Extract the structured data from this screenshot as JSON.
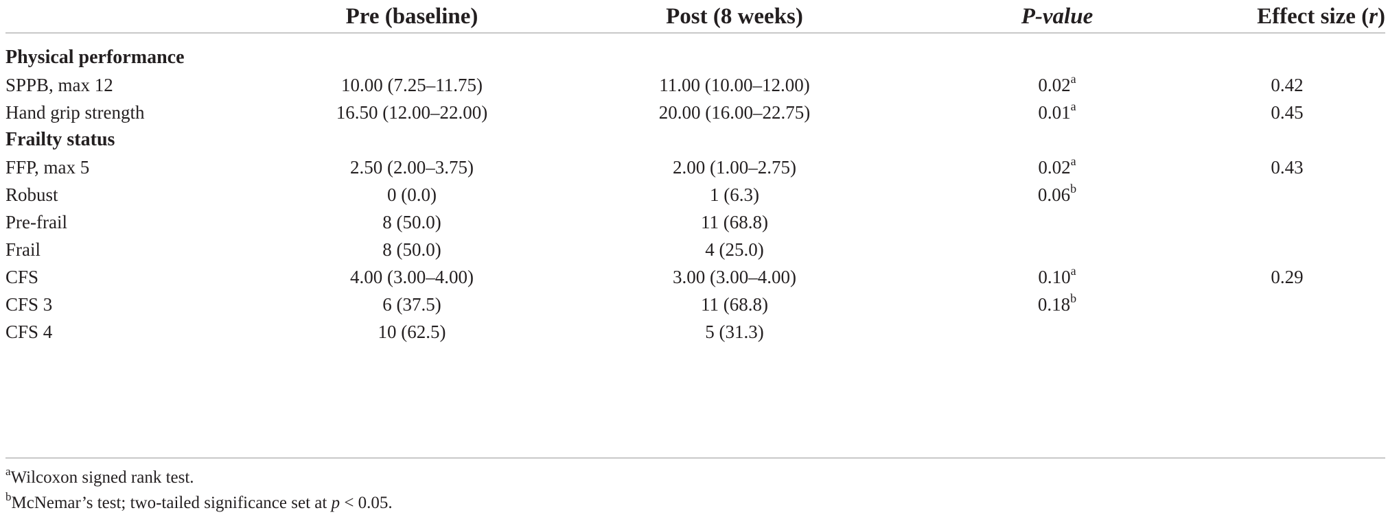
{
  "header": {
    "col1": "Pre (baseline)",
    "col2": "Post (8 weeks)",
    "col3": "P-value",
    "col4_prefix": "Effect size (",
    "col4_var": "r",
    "col4_suffix": ")"
  },
  "sections": [
    {
      "title": "Physical performance",
      "rows": [
        {
          "label": "SPPB, max 12",
          "pre": "10.00 (7.25–11.75)",
          "post": "11.00 (10.00–12.00)",
          "p": "0.02",
          "p_sup": "a",
          "effect": "0.42"
        },
        {
          "label": "Hand grip strength",
          "pre": "16.50 (12.00–22.00)",
          "post": "20.00 (16.00–22.75)",
          "p": "0.01",
          "p_sup": "a",
          "effect": "0.45"
        }
      ]
    },
    {
      "title": "Frailty status",
      "rows": [
        {
          "label": "FFP, max 5",
          "pre": "2.50 (2.00–3.75)",
          "post": "2.00 (1.00–2.75)",
          "p": "0.02",
          "p_sup": "a",
          "effect": "0.43"
        },
        {
          "label": "Robust",
          "pre": "0 (0.0)",
          "post": "1 (6.3)",
          "p": "0.06",
          "p_sup": "b",
          "effect": ""
        },
        {
          "label": "Pre-frail",
          "pre": "8 (50.0)",
          "post": "11 (68.8)",
          "p": "",
          "p_sup": "",
          "effect": ""
        },
        {
          "label": "Frail",
          "pre": "8 (50.0)",
          "post": "4 (25.0)",
          "p": "",
          "p_sup": "",
          "effect": ""
        },
        {
          "label": "CFS",
          "pre": "4.00 (3.00–4.00)",
          "post": "3.00 (3.00–4.00)",
          "p": "0.10",
          "p_sup": "a",
          "effect": "0.29"
        },
        {
          "label": "CFS 3",
          "pre": "6 (37.5)",
          "post": "11 (68.8)",
          "p": "0.18",
          "p_sup": "b",
          "effect": ""
        },
        {
          "label": "CFS 4",
          "pre": "10 (62.5)",
          "post": "5 (31.3)",
          "p": "",
          "p_sup": "",
          "effect": ""
        }
      ]
    }
  ],
  "footnotes": {
    "a_mark": "a",
    "a_text": "Wilcoxon signed rank test.",
    "b_mark": "b",
    "b_text_before": "McNemar’s test; two-tailed significance set at ",
    "b_var": "p",
    "b_text_after": " < 0.05."
  }
}
